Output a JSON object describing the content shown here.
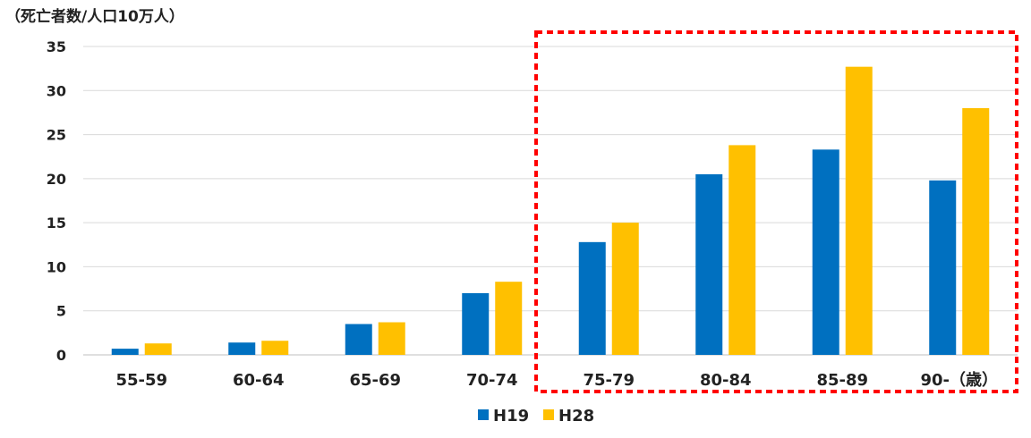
{
  "chart_data": {
    "type": "bar",
    "ylabel": "（死亡者数/人口10万人）",
    "xlabel": "",
    "categories": [
      "55-59",
      "60-64",
      "65-69",
      "70-74",
      "75-79",
      "80-84",
      "85-89",
      "90-（歳）"
    ],
    "series": [
      {
        "name": "H19",
        "color": "#0070C0",
        "values": [
          0.7,
          1.4,
          3.5,
          7.0,
          12.8,
          20.5,
          23.3,
          19.8
        ]
      },
      {
        "name": "H28",
        "color": "#FFC000",
        "values": [
          1.3,
          1.6,
          3.7,
          8.3,
          15.0,
          23.8,
          32.7,
          28.0
        ]
      }
    ],
    "ylim": [
      0,
      35
    ],
    "yticks": [
      0,
      5,
      10,
      15,
      20,
      25,
      30,
      35
    ],
    "grid": true,
    "legend_position": "bottom",
    "highlight": {
      "style": "dotted",
      "color": "#FF0000",
      "from_category": "75-79",
      "to_category": "90-（歳）"
    }
  }
}
